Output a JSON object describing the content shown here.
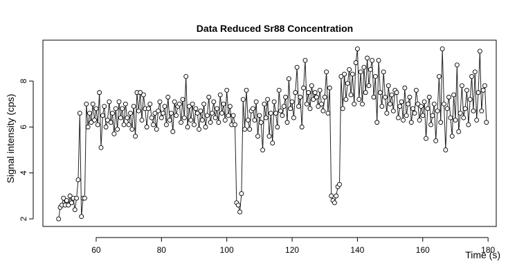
{
  "chart_data": {
    "type": "line",
    "title": "Data Reduced Sr88 Concentration",
    "x_label": "Time (s)",
    "y_label": "Signal intensity (cps)",
    "xlim": [
      43.7,
      182.5
    ],
    "ylim": [
      1.67,
      9.78
    ],
    "xticks": [
      60,
      80,
      100,
      120,
      140,
      160,
      180
    ],
    "yticks": [
      2,
      4,
      6,
      8
    ],
    "x": [
      48.5,
      49,
      49.5,
      50,
      50.5,
      51,
      51.5,
      52,
      52.5,
      53,
      53.5,
      54,
      54.5,
      55,
      55.5,
      56,
      56.5,
      57,
      57.5,
      58,
      58.5,
      59,
      59.5,
      60,
      60.5,
      61,
      61.5,
      62,
      62.5,
      63,
      63.5,
      64,
      64.5,
      65,
      65.5,
      66,
      66.5,
      67,
      67.5,
      68,
      68.5,
      69,
      69.5,
      70,
      70.5,
      71,
      71.5,
      72,
      72.5,
      73,
      73.5,
      74,
      74.5,
      75,
      75.5,
      76,
      76.5,
      77,
      77.5,
      78,
      78.5,
      79,
      79.5,
      80,
      80.5,
      81,
      81.5,
      82,
      82.5,
      83,
      83.5,
      84,
      84.5,
      85,
      85.5,
      86,
      86.5,
      87,
      87.5,
      88,
      88.5,
      89,
      89.5,
      90,
      90.5,
      91,
      91.5,
      92,
      92.5,
      93,
      93.5,
      94,
      94.5,
      95,
      95.5,
      96,
      96.5,
      97,
      97.5,
      98,
      98.5,
      99,
      99.5,
      100,
      100.5,
      101,
      101.5,
      102,
      102.5,
      103,
      103.5,
      104,
      104.5,
      105,
      105.5,
      106,
      106.5,
      107,
      107.5,
      108,
      108.5,
      109,
      109.5,
      110,
      110.5,
      111,
      111.5,
      112,
      112.5,
      113,
      113.5,
      114,
      114.5,
      115,
      115.5,
      116,
      116.5,
      117,
      117.5,
      118,
      118.5,
      119,
      119.5,
      120,
      120.5,
      121,
      121.5,
      122,
      122.5,
      123,
      123.5,
      124,
      124.5,
      125,
      125.5,
      126,
      126.5,
      127,
      127.5,
      128,
      128.5,
      129,
      129.5,
      130,
      130.5,
      131,
      131.5,
      132,
      132.5,
      133,
      133.5,
      134,
      134.5,
      135,
      135.5,
      136,
      136.5,
      137,
      137.5,
      138,
      138.5,
      139,
      139.5,
      140,
      140.5,
      141,
      141.5,
      142,
      142.5,
      143,
      143.5,
      144,
      144.5,
      145,
      145.5,
      146,
      146.5,
      147,
      147.5,
      148,
      148.5,
      149,
      149.5,
      150,
      150.5,
      151,
      151.5,
      152,
      152.5,
      153,
      153.5,
      154,
      154.5,
      155,
      155.5,
      156,
      156.5,
      157,
      157.5,
      158,
      158.5,
      159,
      159.5,
      160,
      160.5,
      161,
      161.5,
      162,
      162.5,
      163,
      163.5,
      164,
      164.5,
      165,
      165.5,
      166,
      166.5,
      167,
      167.5,
      168,
      168.5,
      169,
      169.5,
      170,
      170.5,
      171,
      171.5,
      172,
      172.5,
      173,
      173.5,
      174,
      174.5,
      175,
      175.5,
      176,
      176.5,
      177,
      177.5,
      178,
      178.5,
      179,
      179.5
    ],
    "series": [
      {
        "color": "#222222",
        "values": [
          2.0,
          2.5,
          2.6,
          2.9,
          2.6,
          2.8,
          2.6,
          3.0,
          2.7,
          2.9,
          2.4,
          2.9,
          3.7,
          6.6,
          2.1,
          2.9,
          2.9,
          7.0,
          6.0,
          6.6,
          6.2,
          7.0,
          6.3,
          6.8,
          6.1,
          7.5,
          5.1,
          6.5,
          6.9,
          6.0,
          6.3,
          7.1,
          6.2,
          6.6,
          5.7,
          6.8,
          5.9,
          7.1,
          6.4,
          6.8,
          6.1,
          7.0,
          6.4,
          6.1,
          6.6,
          5.9,
          6.9,
          5.6,
          7.5,
          6.7,
          7.5,
          6.3,
          7.4,
          6.8,
          6.0,
          6.8,
          7.0,
          6.4,
          6.1,
          6.6,
          5.9,
          6.7,
          7.1,
          6.4,
          6.6,
          6.9,
          6.1,
          7.3,
          6.3,
          6.6,
          5.8,
          7.1,
          6.5,
          6.9,
          7.0,
          6.2,
          7.2,
          6.4,
          8.2,
          6.0,
          6.9,
          6.3,
          7.0,
          6.1,
          6.8,
          6.6,
          5.9,
          6.7,
          6.3,
          7.0,
          6.0,
          6.5,
          7.3,
          6.2,
          6.6,
          7.1,
          6.4,
          6.8,
          6.2,
          7.4,
          6.6,
          7.0,
          6.3,
          7.6,
          6.5,
          6.9,
          6.1,
          6.5,
          6.1,
          2.7,
          2.6,
          2.3,
          3.1,
          7.2,
          5.9,
          7.6,
          6.3,
          5.9,
          6.7,
          6.8,
          6.3,
          7.1,
          5.6,
          6.5,
          6.2,
          5.0,
          7.0,
          6.4,
          7.2,
          5.6,
          6.6,
          5.3,
          7.1,
          6.6,
          6.0,
          7.6,
          6.7,
          6.5,
          6.9,
          7.3,
          6.2,
          8.1,
          6.8,
          7.1,
          6.4,
          7.5,
          8.6,
          6.9,
          7.3,
          6.0,
          7.7,
          8.9,
          7.0,
          7.5,
          6.8,
          7.8,
          7.2,
          7.5,
          7.3,
          6.9,
          7.6,
          7.0,
          6.7,
          7.3,
          8.4,
          6.6,
          7.7,
          3.0,
          2.8,
          2.7,
          3.0,
          3.4,
          3.5,
          8.2,
          6.8,
          8.3,
          7.2,
          7.9,
          8.5,
          7.4,
          8.3,
          7.0,
          8.8,
          9.4,
          7.2,
          8.4,
          7.0,
          8.6,
          7.5,
          9.0,
          7.8,
          8.5,
          8.9,
          7.3,
          8.2,
          6.2,
          8.9,
          7.5,
          6.9,
          8.4,
          7.3,
          6.6,
          7.8,
          7.0,
          7.4,
          6.7,
          7.6,
          7.5,
          6.4,
          6.9,
          7.1,
          6.3,
          7.7,
          6.5,
          7.0,
          7.3,
          6.2,
          6.8,
          6.6,
          7.6,
          7.0,
          6.3,
          6.9,
          6.5,
          7.1,
          5.5,
          6.8,
          7.3,
          6.1,
          6.5,
          7.0,
          5.4,
          6.7,
          8.2,
          6.2,
          9.4,
          7.0,
          5.0,
          6.8,
          7.3,
          6.4,
          5.6,
          7.4,
          6.3,
          8.7,
          5.8,
          6.6,
          7.8,
          6.4,
          6.8,
          7.6,
          6.1,
          7.2,
          8.2,
          6.7,
          8.4,
          6.3,
          7.5,
          9.3,
          6.7,
          7.6,
          7.8,
          6.2
        ]
      }
    ]
  }
}
